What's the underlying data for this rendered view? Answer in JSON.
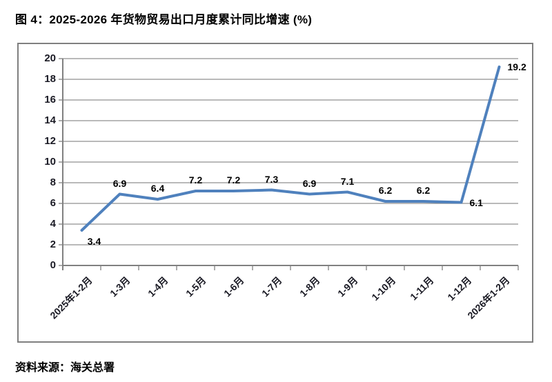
{
  "title": "图 4：2025-2026 年货物贸易出口月度累计同比增速 (%)",
  "source": "资料来源：海关总署",
  "chart_data": {
    "type": "line",
    "title": "图 4：2025-2026 年货物贸易出口月度累计同比增速 (%)",
    "categories": [
      "2025年1-2月",
      "1-3月",
      "1-4月",
      "1-5月",
      "1-6月",
      "1-7月",
      "1-8月",
      "1-9月",
      "1-10月",
      "1-11月",
      "1-12月",
      "2026年1-2月"
    ],
    "values": [
      3.4,
      6.9,
      6.4,
      7.2,
      7.2,
      7.3,
      6.9,
      7.1,
      6.2,
      6.2,
      6.1,
      19.2
    ],
    "data_labels": [
      "3.4",
      "6.9",
      "6.4",
      "7.2",
      "7.2",
      "7.3",
      "6.9",
      "7.1",
      "6.2",
      "6.2",
      "6.1",
      "19.2"
    ],
    "label_placements": [
      "below",
      "above",
      "above",
      "above",
      "above",
      "above",
      "above",
      "above",
      "above",
      "above",
      "right",
      "right"
    ],
    "xlabel": "",
    "ylabel": "",
    "ylim": [
      0,
      20
    ],
    "yticks": [
      0,
      2,
      4,
      6,
      8,
      10,
      12,
      14,
      16,
      18,
      20
    ],
    "grid": true,
    "legend": "none",
    "line_color": "#4F81BD",
    "gridline_color": "#8f8f8f",
    "axis_color": "#808080",
    "label_color": "#000000"
  }
}
